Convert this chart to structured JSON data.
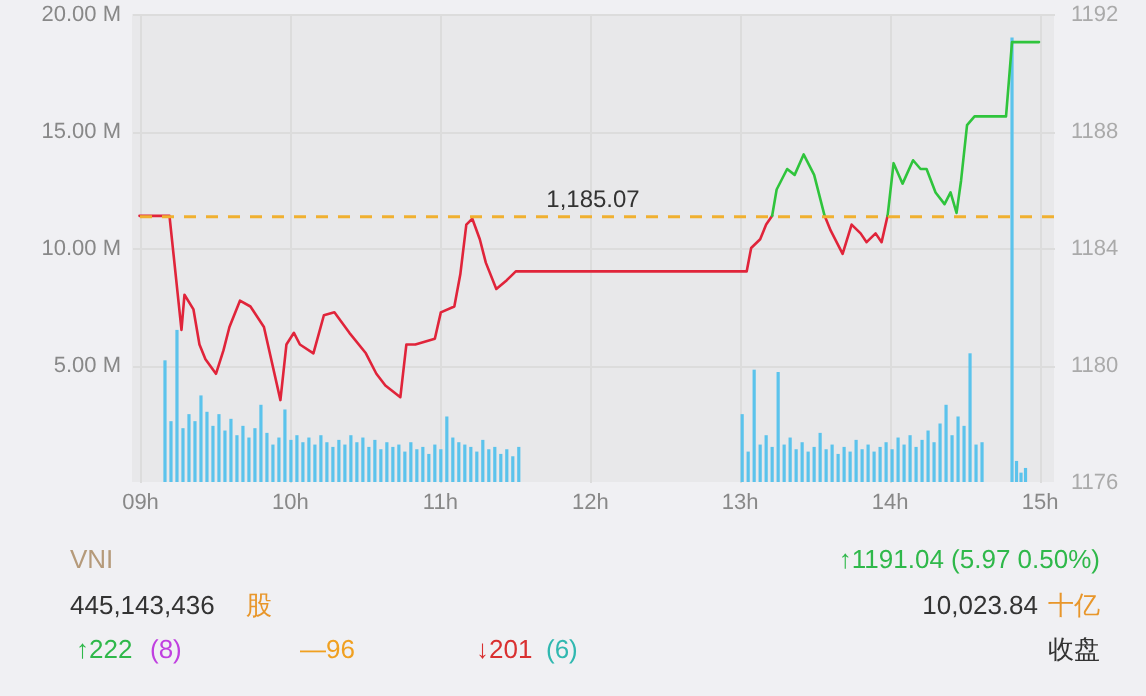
{
  "chart_data": [
    {
      "type": "line",
      "xlim": [
        8.95,
        15.1
      ],
      "xticks": [
        {
          "value": 9,
          "label": "09h"
        },
        {
          "value": 10,
          "label": "10h"
        },
        {
          "value": 11,
          "label": "11h"
        },
        {
          "value": 12,
          "label": "12h"
        },
        {
          "value": 13,
          "label": "13h"
        },
        {
          "value": 14,
          "label": "14h"
        },
        {
          "value": 15,
          "label": "15h"
        }
      ],
      "ylim": [
        0,
        20
      ],
      "yticks": [
        {
          "value": 5,
          "label": "5.00 M"
        },
        {
          "value": 10,
          "label": "10.00 M"
        },
        {
          "value": 15,
          "label": "15.00 M"
        },
        {
          "value": 20,
          "label": "20.00 M"
        }
      ],
      "y2lim": [
        1176,
        1192
      ],
      "y2ticks": [
        1176,
        1180,
        1184,
        1188,
        1192
      ],
      "grid": true,
      "ref_lines": [
        {
          "axis": "y2",
          "value": 1185.07,
          "label": "1,185.07",
          "color": "#f0b030",
          "line_style": "dashed"
        }
      ],
      "series": [
        {
          "type": "bar",
          "color": "#5bc3ec",
          "x": [
            9.17,
            9.21,
            9.25,
            9.29,
            9.33,
            9.37,
            9.41,
            9.45,
            9.49,
            9.53,
            9.57,
            9.61,
            9.65,
            9.69,
            9.73,
            9.77,
            9.81,
            9.85,
            9.89,
            9.93,
            9.97,
            10.01,
            10.05,
            10.09,
            10.13,
            10.17,
            10.21,
            10.25,
            10.29,
            10.33,
            10.37,
            10.41,
            10.45,
            10.49,
            10.53,
            10.57,
            10.61,
            10.65,
            10.69,
            10.73,
            10.77,
            10.81,
            10.85,
            10.89,
            10.93,
            10.97,
            11.01,
            11.05,
            11.09,
            11.13,
            11.17,
            11.21,
            11.25,
            11.29,
            11.33,
            11.37,
            11.41,
            11.45,
            11.49,
            11.53,
            13.02,
            13.06,
            13.1,
            13.14,
            13.18,
            13.22,
            13.26,
            13.3,
            13.34,
            13.38,
            13.42,
            13.46,
            13.5,
            13.54,
            13.58,
            13.62,
            13.66,
            13.7,
            13.74,
            13.78,
            13.82,
            13.86,
            13.9,
            13.94,
            13.98,
            14.02,
            14.06,
            14.1,
            14.14,
            14.18,
            14.22,
            14.26,
            14.3,
            14.34,
            14.38,
            14.42,
            14.46,
            14.5,
            14.54,
            14.58,
            14.62,
            14.82,
            14.85,
            14.88,
            14.91
          ],
          "values": [
            5.2,
            2.6,
            6.5,
            2.3,
            2.9,
            2.6,
            3.7,
            3.0,
            2.4,
            2.9,
            2.2,
            2.7,
            2.0,
            2.4,
            1.9,
            2.3,
            3.3,
            2.1,
            1.6,
            1.9,
            3.1,
            1.8,
            2.0,
            1.7,
            1.9,
            1.6,
            2.0,
            1.7,
            1.5,
            1.8,
            1.6,
            2.0,
            1.7,
            1.9,
            1.5,
            1.8,
            1.4,
            1.7,
            1.5,
            1.6,
            1.3,
            1.7,
            1.4,
            1.5,
            1.2,
            1.6,
            1.4,
            2.8,
            1.9,
            1.7,
            1.6,
            1.5,
            1.3,
            1.8,
            1.4,
            1.5,
            1.2,
            1.4,
            1.1,
            1.5,
            2.9,
            1.3,
            4.8,
            1.6,
            2.0,
            1.5,
            4.7,
            1.6,
            1.9,
            1.4,
            1.7,
            1.3,
            1.5,
            2.1,
            1.4,
            1.6,
            1.2,
            1.5,
            1.3,
            1.8,
            1.4,
            1.6,
            1.3,
            1.5,
            1.7,
            1.4,
            1.9,
            1.6,
            2.0,
            1.5,
            1.8,
            2.2,
            1.7,
            2.5,
            3.3,
            2.0,
            2.8,
            2.4,
            5.5,
            1.6,
            1.7,
            19.0,
            0.9,
            0.4,
            0.6
          ]
        },
        {
          "type": "line",
          "axis": "y2",
          "color": "#e0243a",
          "values": [
            1185.1,
            1185.1,
            1181.2,
            1182.4,
            1181.9,
            1180.7,
            1180.2,
            1179.7,
            1180.5,
            1181.3,
            1182.2,
            1182.0,
            1181.3,
            1178.8,
            1180.7,
            1181.1,
            1180.7,
            1180.4,
            1181.7,
            1181.8,
            1181.1,
            1180.4,
            1179.7,
            1179.3,
            1178.9,
            1180.7,
            1180.7,
            1180.9,
            1181.8,
            1182.0,
            1183.1,
            1184.8,
            1185.0,
            1184.3,
            1183.5,
            1182.6,
            1182.9,
            1183.2,
            1183.2,
            1184.0,
            1184.3,
            1184.8,
            1185.1,
            null,
            null,
            null,
            null,
            null,
            1185.1,
            1184.6,
            1183.8,
            1184.8,
            1184.5,
            1184.2,
            1184.5,
            1184.2,
            1185.1,
            null,
            null,
            null,
            null,
            null,
            null,
            null,
            null,
            null,
            null,
            null,
            null,
            null,
            null,
            null
          ]
        },
        {
          "type": "line",
          "axis": "y2",
          "color": "#2fc43c",
          "values": [
            null,
            null,
            null,
            null,
            null,
            null,
            null,
            null,
            null,
            null,
            null,
            null,
            null,
            null,
            null,
            null,
            null,
            null,
            null,
            null,
            null,
            null,
            null,
            null,
            null,
            null,
            null,
            null,
            null,
            null,
            null,
            null,
            null,
            null,
            null,
            null,
            null,
            null,
            null,
            null,
            null,
            null,
            1185.1,
            1186.0,
            1186.7,
            1186.5,
            1187.2,
            1186.5,
            1185.1,
            null,
            null,
            null,
            null,
            null,
            null,
            null,
            1185.1,
            1186.9,
            1186.2,
            1187.0,
            1186.7,
            1186.7,
            1185.9,
            1185.5,
            1185.9,
            1185.2,
            1186.3,
            1188.2,
            1188.5,
            1188.5,
            1191.04,
            1191.04
          ]
        }
      ],
      "x": [
        9.0,
        9.2,
        9.28,
        9.3,
        9.36,
        9.4,
        9.44,
        9.51,
        9.56,
        9.6,
        9.67,
        9.74,
        9.83,
        9.94,
        9.98,
        10.03,
        10.07,
        10.16,
        10.23,
        10.3,
        10.4,
        10.51,
        10.58,
        10.64,
        10.74,
        10.78,
        10.84,
        10.97,
        11.01,
        11.1,
        11.14,
        11.18,
        11.22,
        11.27,
        11.31,
        11.38,
        11.45,
        11.51,
        13.05,
        13.08,
        13.14,
        13.18,
        13.22,
        13.25,
        13.32,
        13.37,
        13.43,
        13.5,
        13.57,
        13.61,
        13.69,
        13.75,
        13.81,
        13.85,
        13.91,
        13.95,
        13.99,
        14.03,
        14.09,
        14.16,
        14.21,
        14.25,
        14.31,
        14.37,
        14.41,
        14.45,
        14.48,
        14.52,
        14.57,
        14.78,
        14.82,
        15.0
      ]
    },
    {
      "type": "other",
      "annotations": [
        "VNI",
        "445,143,436",
        "股",
        "↑1191.04 (5.97 0.50%)",
        "10,023.84",
        "十亿",
        "↑222",
        "(8)",
        "—96",
        "↓201",
        "(6)",
        "收盘"
      ]
    }
  ]
}
